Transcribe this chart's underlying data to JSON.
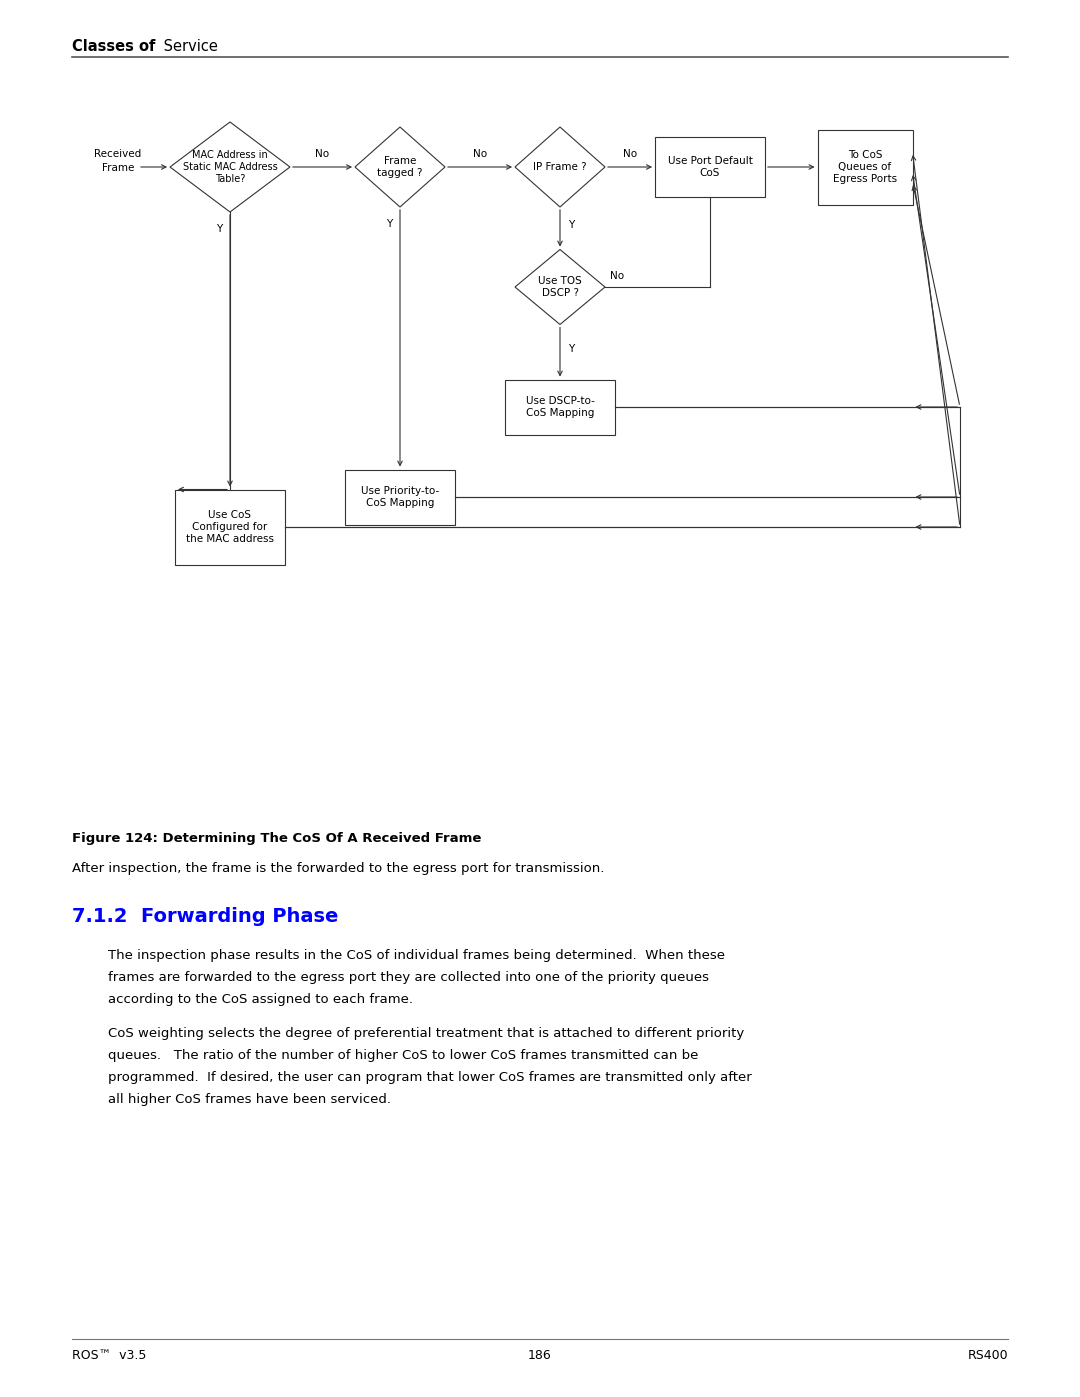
{
  "page_bg": "#ffffff",
  "figure_caption": "Figure 124: Determining The CoS Of A Received Frame",
  "after_caption": "After inspection, the frame is the forwarded to the egress port for transmission.",
  "section_title": "7.1.2  Forwarding Phase",
  "section_title_color": "#0000ff",
  "para1_lines": [
    "The inspection phase results in the CoS of individual frames being determined.  When these",
    "frames are forwarded to the egress port they are collected into one of the priority queues",
    "according to the CoS assigned to each frame."
  ],
  "para2_lines": [
    "CoS weighting selects the degree of preferential treatment that is attached to different priority",
    "queues.   The ratio of the number of higher CoS to lower CoS frames transmitted can be",
    "programmed.  If desired, the user can program that lower CoS frames are transmitted only after",
    "all higher CoS frames have been serviced."
  ],
  "footer_left": "ROS™  v3.5",
  "footer_center": "186",
  "footer_right": "RS400",
  "lc": "#333333",
  "lw": 0.8
}
